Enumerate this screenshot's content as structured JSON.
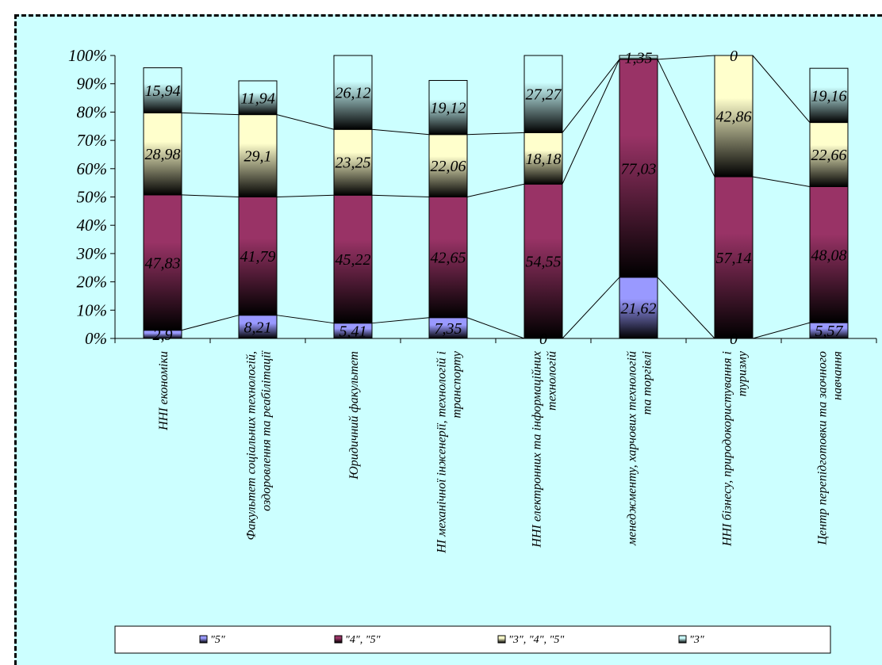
{
  "colors": {
    "s5": "#9999ff",
    "s45": "#993366",
    "s345": "#ffffcc",
    "s3": "#ccffff"
  },
  "chart_data": {
    "type": "bar",
    "stacked": true,
    "percent_stacked": true,
    "ylim": [
      0,
      100
    ],
    "yticks": [
      "0%",
      "10%",
      "20%",
      "30%",
      "40%",
      "50%",
      "60%",
      "70%",
      "80%",
      "90%",
      "100%"
    ],
    "categories": [
      [
        "ННІ економіки"
      ],
      [
        "Факультет соціальних технологій,",
        "оздоровлення та реабілітації"
      ],
      [
        "Юридичний факультет"
      ],
      [
        "НІ механічної інженерії, технологій і",
        "транспорту"
      ],
      [
        "ННІ електронних та інформаційних",
        "технологій"
      ],
      [
        "менеджменту, харчових технологій",
        "та торгівлі"
      ],
      [
        "ННІ бізнесу, природокористування і",
        "туризму"
      ],
      [
        "Центр перепідготовки та заочного",
        "навчання"
      ]
    ],
    "series": [
      {
        "name": "\"5\"",
        "values": [
          2.9,
          8.21,
          5.41,
          7.35,
          0,
          21.62,
          0,
          5.57
        ],
        "labels": [
          "2,9",
          "8,21",
          "5,41",
          "7,35",
          "0",
          "21,62",
          "0",
          "5,57"
        ]
      },
      {
        "name": "\"4\", \"5\"",
        "values": [
          47.83,
          41.79,
          45.22,
          42.65,
          54.55,
          77.03,
          57.14,
          48.08
        ],
        "labels": [
          "47,83",
          "41,79",
          "45,22",
          "42,65",
          "54,55",
          "77,03",
          "57,14",
          "48,08"
        ]
      },
      {
        "name": "\"3\", \"4\", \"5\"",
        "values": [
          28.98,
          29.1,
          23.25,
          22.06,
          18.18,
          0,
          42.86,
          22.66
        ],
        "labels": [
          "28,98",
          "29,1",
          "23,25",
          "22,06",
          "18,18",
          "0",
          "42,86",
          "22,66"
        ]
      },
      {
        "name": "\"3\"",
        "values": [
          15.94,
          11.94,
          26.12,
          19.12,
          27.27,
          1.35,
          0,
          19.16
        ],
        "labels": [
          "15,94",
          "11,94",
          "26,12",
          "19,12",
          "27,27",
          "1,35",
          "0",
          "19,16"
        ]
      }
    ],
    "legend_position": "bottom",
    "series_lines": true
  }
}
